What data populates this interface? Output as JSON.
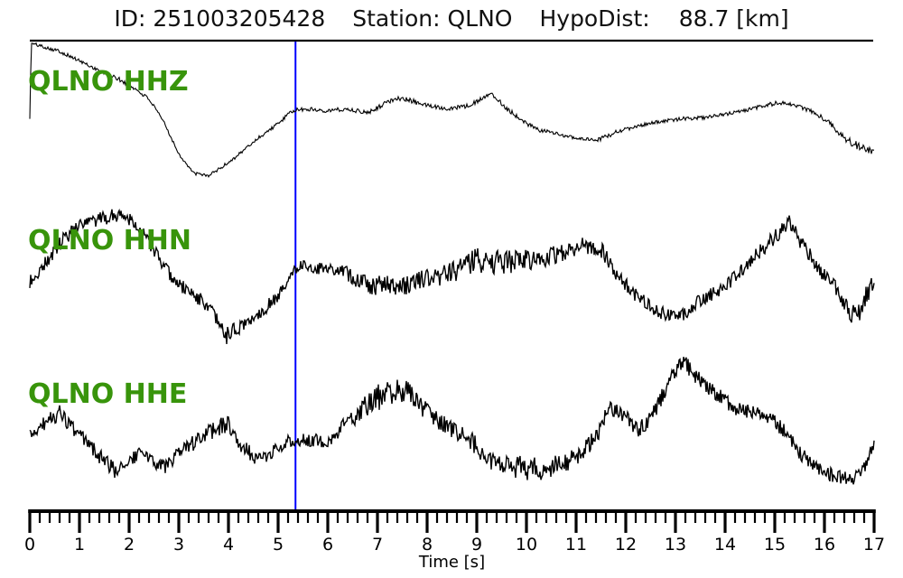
{
  "header": {
    "id_text": "ID: 251003205428",
    "station_text": "Station: QLNO",
    "hypodist_label": "HypoDist:",
    "hypodist_value": "88.7 [km]"
  },
  "colors": {
    "background": "#ffffff",
    "trace": "#000000",
    "axis": "#000000",
    "label_green": "#38940b",
    "pick_blue": "#0000ff",
    "title_text": "#111111"
  },
  "chart_data": {
    "type": "line",
    "title": "ID: 251003205428  Station: QLNO  HypoDist: 88.7 [km]",
    "xlabel": "Time [s]",
    "ylabel": "",
    "x_range": [
      0,
      17
    ],
    "x_major_tick_interval_s": 1,
    "x_minor_tick_interval_s": 0.2,
    "x_tick_labels": [
      "0",
      "1",
      "2",
      "3",
      "4",
      "5",
      "6",
      "7",
      "8",
      "9",
      "10",
      "11",
      "12",
      "13",
      "14",
      "15",
      "16",
      "17"
    ],
    "grid": false,
    "legend": false,
    "pick_time_s": 5.35,
    "note": "three normalized seismogram traces, amplitude unit = normalized (-1..1)",
    "traces": [
      {
        "id": "HHZ",
        "label": "QLNO HHZ",
        "seed": 101,
        "t": [
          0,
          0.03,
          0.3,
          0.6,
          0.9,
          1.2,
          1.5,
          1.8,
          2.1,
          2.4,
          2.7,
          3.0,
          3.3,
          3.6,
          3.9,
          4.2,
          4.6,
          5.0,
          5.3,
          5.6,
          6.0,
          6.4,
          6.8,
          7.1,
          7.4,
          7.7,
          8.0,
          8.4,
          8.8,
          9.1,
          9.3,
          9.6,
          9.9,
          10.2,
          10.6,
          11.0,
          11.4,
          11.8,
          12.2,
          12.7,
          13.2,
          13.6,
          14.0,
          14.4,
          14.8,
          15.1,
          15.4,
          15.8,
          16.1,
          16.4,
          16.6,
          16.8,
          17.0
        ],
        "amp": [
          -0.13,
          0.9,
          0.85,
          0.79,
          0.69,
          0.59,
          0.49,
          0.4,
          0.28,
          0.13,
          -0.19,
          -0.63,
          -0.9,
          -0.93,
          -0.8,
          -0.64,
          -0.41,
          -0.21,
          -0.03,
          -0.01,
          -0.03,
          -0.01,
          -0.06,
          0.05,
          0.15,
          0.1,
          0.04,
          0.0,
          0.03,
          0.13,
          0.21,
          0.0,
          -0.16,
          -0.29,
          -0.35,
          -0.41,
          -0.45,
          -0.33,
          -0.25,
          -0.18,
          -0.14,
          -0.13,
          -0.08,
          -0.03,
          0.04,
          0.08,
          0.05,
          -0.06,
          -0.2,
          -0.4,
          -0.5,
          -0.56,
          -0.6
        ],
        "noise": [
          0.02,
          0.02,
          0.025,
          0.025,
          0.025,
          0.025,
          0.025,
          0.03,
          0.025,
          0.025,
          0.02,
          0.02,
          0.02,
          0.02,
          0.025,
          0.025,
          0.025,
          0.025,
          0.03,
          0.03,
          0.03,
          0.03,
          0.03,
          0.035,
          0.035,
          0.035,
          0.03,
          0.03,
          0.03,
          0.03,
          0.03,
          0.035,
          0.03,
          0.03,
          0.025,
          0.025,
          0.03,
          0.03,
          0.025,
          0.025,
          0.025,
          0.025,
          0.025,
          0.025,
          0.03,
          0.03,
          0.03,
          0.03,
          0.035,
          0.05,
          0.06,
          0.05,
          0.04
        ]
      },
      {
        "id": "HHN",
        "label": "QLNO HHN",
        "seed": 202,
        "t": [
          0,
          0.36,
          0.73,
          1.1,
          1.5,
          1.8,
          2.1,
          2.36,
          2.55,
          2.73,
          3.0,
          3.3,
          3.6,
          3.95,
          4.24,
          4.5,
          4.73,
          4.9,
          5.1,
          5.33,
          5.5,
          5.7,
          6.0,
          6.3,
          6.6,
          6.9,
          7.2,
          7.5,
          7.8,
          8.1,
          8.45,
          8.8,
          9.1,
          9.4,
          9.65,
          10.0,
          10.25,
          10.6,
          10.85,
          11.15,
          11.5,
          11.8,
          12.1,
          12.4,
          12.7,
          12.9,
          13.2,
          13.45,
          13.75,
          14.05,
          14.35,
          14.65,
          14.95,
          15.2,
          15.3,
          15.45,
          15.7,
          15.95,
          16.2,
          16.4,
          16.55,
          16.7,
          16.85,
          17.0
        ],
        "amp": [
          -0.1,
          0.21,
          0.54,
          0.71,
          0.79,
          0.86,
          0.75,
          0.5,
          0.29,
          0.09,
          -0.13,
          -0.26,
          -0.44,
          -0.84,
          -0.71,
          -0.59,
          -0.46,
          -0.34,
          -0.21,
          0.09,
          0.16,
          0.1,
          0.09,
          0.06,
          -0.06,
          -0.14,
          -0.13,
          -0.16,
          -0.06,
          -0.03,
          0.03,
          0.19,
          0.21,
          0.19,
          0.19,
          0.21,
          0.23,
          0.31,
          0.35,
          0.43,
          0.36,
          0.04,
          -0.21,
          -0.38,
          -0.51,
          -0.56,
          -0.55,
          -0.38,
          -0.25,
          -0.13,
          0.09,
          0.29,
          0.5,
          0.66,
          0.75,
          0.54,
          0.29,
          0.04,
          -0.16,
          -0.38,
          -0.54,
          -0.5,
          -0.25,
          -0.09
        ],
        "noise": [
          0.1,
          0.1,
          0.11,
          0.1,
          0.1,
          0.11,
          0.09,
          0.09,
          0.09,
          0.09,
          0.09,
          0.1,
          0.1,
          0.12,
          0.1,
          0.09,
          0.09,
          0.09,
          0.09,
          0.08,
          0.08,
          0.08,
          0.08,
          0.09,
          0.12,
          0.13,
          0.13,
          0.14,
          0.13,
          0.13,
          0.16,
          0.18,
          0.18,
          0.17,
          0.16,
          0.15,
          0.14,
          0.14,
          0.13,
          0.12,
          0.11,
          0.1,
          0.1,
          0.1,
          0.1,
          0.1,
          0.1,
          0.1,
          0.1,
          0.1,
          0.1,
          0.1,
          0.1,
          0.1,
          0.1,
          0.1,
          0.1,
          0.1,
          0.11,
          0.12,
          0.13,
          0.14,
          0.14,
          0.13
        ]
      },
      {
        "id": "HHE",
        "label": "QLNO HHE",
        "seed": 303,
        "t": [
          0,
          0.3,
          0.6,
          0.9,
          1.2,
          1.5,
          1.7,
          2.0,
          2.24,
          2.55,
          2.73,
          3.0,
          3.3,
          3.6,
          3.8,
          4.0,
          4.24,
          4.5,
          4.7,
          4.9,
          5.15,
          5.35,
          5.7,
          6.0,
          6.3,
          6.6,
          6.9,
          7.2,
          7.5,
          7.8,
          8.1,
          8.4,
          8.76,
          9.05,
          9.35,
          9.65,
          9.9,
          10.25,
          10.55,
          10.85,
          11.15,
          11.45,
          11.65,
          11.9,
          12.25,
          12.5,
          12.8,
          13.05,
          13.16,
          13.5,
          13.75,
          13.95,
          14.2,
          14.5,
          14.7,
          15.0,
          15.2,
          15.45,
          15.7,
          15.95,
          16.2,
          16.5,
          16.7,
          16.85,
          17.0
        ],
        "amp": [
          -0.04,
          0.15,
          0.28,
          0.04,
          -0.16,
          -0.38,
          -0.51,
          -0.38,
          -0.26,
          -0.41,
          -0.45,
          -0.29,
          -0.13,
          0.0,
          0.1,
          0.13,
          -0.15,
          -0.31,
          -0.36,
          -0.25,
          -0.13,
          -0.09,
          -0.1,
          -0.09,
          0.09,
          0.25,
          0.46,
          0.55,
          0.6,
          0.44,
          0.23,
          0.1,
          -0.04,
          -0.21,
          -0.4,
          -0.48,
          -0.46,
          -0.51,
          -0.45,
          -0.38,
          -0.24,
          0.0,
          0.35,
          0.29,
          0.06,
          0.19,
          0.63,
          0.94,
          1.0,
          0.73,
          0.6,
          0.48,
          0.35,
          0.3,
          0.29,
          0.16,
          0.03,
          -0.23,
          -0.4,
          -0.53,
          -0.6,
          -0.63,
          -0.56,
          -0.41,
          -0.13
        ],
        "noise": [
          0.1,
          0.1,
          0.11,
          0.1,
          0.1,
          0.11,
          0.11,
          0.1,
          0.09,
          0.1,
          0.1,
          0.1,
          0.11,
          0.12,
          0.13,
          0.12,
          0.1,
          0.1,
          0.1,
          0.1,
          0.1,
          0.1,
          0.09,
          0.1,
          0.11,
          0.13,
          0.2,
          0.16,
          0.2,
          0.14,
          0.12,
          0.12,
          0.13,
          0.14,
          0.15,
          0.16,
          0.17,
          0.17,
          0.14,
          0.13,
          0.12,
          0.11,
          0.1,
          0.1,
          0.11,
          0.12,
          0.13,
          0.12,
          0.12,
          0.11,
          0.1,
          0.1,
          0.1,
          0.09,
          0.09,
          0.1,
          0.1,
          0.1,
          0.1,
          0.11,
          0.11,
          0.11,
          0.1,
          0.1,
          0.09
        ]
      }
    ]
  }
}
